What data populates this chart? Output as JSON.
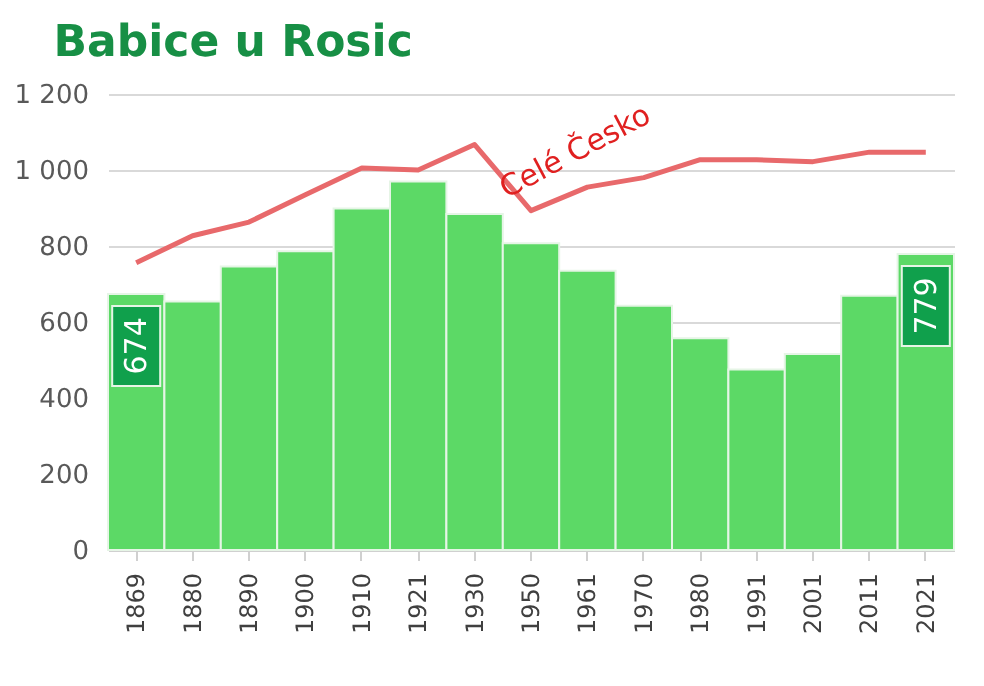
{
  "chart_data": {
    "type": "bar",
    "title": "Babice u Rosic",
    "categories": [
      "1869",
      "1880",
      "1890",
      "1900",
      "1910",
      "1921",
      "1930",
      "1950",
      "1961",
      "1970",
      "1980",
      "1991",
      "2001",
      "2011",
      "2021"
    ],
    "series": [
      {
        "color": "#5cd966",
        "values": [
          674,
          654,
          746,
          786,
          899,
          970,
          884,
          807,
          735,
          643,
          557,
          475,
          516,
          669,
          779
        ],
        "value_labels": [
          "674",
          null,
          null,
          null,
          null,
          null,
          null,
          null,
          null,
          null,
          null,
          null,
          null,
          null,
          "779"
        ]
      },
      {
        "type": "line",
        "name": "Celé Česko",
        "color": "#e8696b",
        "values": [
          756,
          827,
          863,
          935,
          1005,
          1000,
          1067,
          893,
          955,
          980,
          1027,
          1027,
          1022,
          1047,
          1047
        ]
      }
    ],
    "ylim": [
      0,
      1200
    ],
    "yticks": [
      0,
      {
        "value": 200,
        "label": "200"
      },
      {
        "value": 400,
        "label": "400"
      },
      {
        "value": 600,
        "label": "600"
      },
      {
        "value": 800,
        "label": "800"
      },
      {
        "value": 1000,
        "label": "1 000"
      },
      {
        "value": 1200,
        "label": "1 200"
      }
    ],
    "grid": "y"
  }
}
